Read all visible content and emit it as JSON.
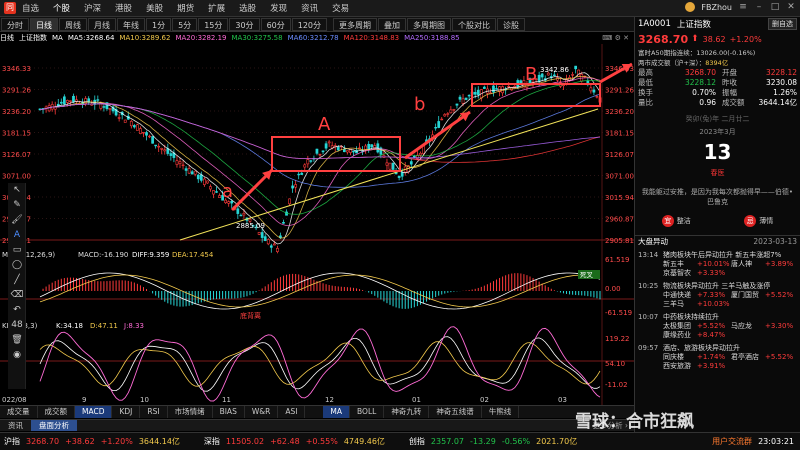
{
  "menu": {
    "items": [
      "自选",
      "个股",
      "沪深",
      "港股",
      "美股",
      "期货",
      "扩展",
      "选股",
      "发现",
      "资讯",
      "交易"
    ],
    "active": "个股",
    "user": "FBZhou"
  },
  "period_tabs": [
    "分时",
    "日线",
    "周线",
    "月线",
    "年线",
    "1分",
    "5分",
    "15分",
    "30分",
    "60分",
    "120分",
    "更多周期",
    "叠加",
    "多周期图",
    "个股对比",
    "诊股"
  ],
  "period_active": "日线",
  "ma_legend": {
    "label": "日线",
    "name": "上证指数",
    "ma": "MA",
    "items": [
      {
        "text": "MA5:3268.64",
        "color": "#ffffff"
      },
      {
        "text": "MA10:3289.62",
        "color": "#f2c94c"
      },
      {
        "text": "MA20:3282.19",
        "color": "#ff6bd6"
      },
      {
        "text": "MA30:3275.58",
        "color": "#21c24b"
      },
      {
        "text": "MA60:3212.78",
        "color": "#6a8cff"
      },
      {
        "text": "MA120:3148.83",
        "color": "#ff3b3b"
      },
      {
        "text": "MA250:3188.85",
        "color": "#b36bff"
      }
    ]
  },
  "price_axis": [
    "3346.33",
    "3291.26",
    "3236.20",
    "3181.15",
    "3126.07",
    "3071.00",
    "3015.94",
    "2960.87",
    "2905.81"
  ],
  "price_axis_right": [
    "3346.33",
    "3291.26",
    "3236.20",
    "3181.15",
    "3126.07",
    "3071.00",
    "3015.94",
    "2960.87",
    "2905.81"
  ],
  "annotations": {
    "low": "2885.09",
    "high": "3342.86",
    "a": "a",
    "A": "A",
    "b": "b",
    "B": "B"
  },
  "macd": {
    "legend": "MACD(12,26,9)",
    "macd": "MACD:-16.190",
    "diff": "DIFF:9.359",
    "dea": "DEA:17.454",
    "axis": [
      "61.519",
      "0.00",
      "-61.519"
    ],
    "death_label": "死叉",
    "golden_label": "金叉",
    "tag": "底背离"
  },
  "kdj": {
    "legend": "KDJ(9,3,3)",
    "k": "K:34.18",
    "d": "D:47.11",
    "j": "J:8.33",
    "axis": [
      "119.22",
      "54.10",
      "-11.02"
    ]
  },
  "date_axis": [
    "022/08",
    "9",
    "10",
    "11",
    "12",
    "01",
    "02",
    "03"
  ],
  "indicator_tabs": [
    "成交量",
    "成交额",
    "MACD",
    "KDJ",
    "RSI",
    "市场情绪",
    "BIAS",
    "W&R",
    "ASI",
    "MA",
    "BOLL",
    "神奇九转",
    "神奇五线谱",
    "牛熊线"
  ],
  "indicator_active": [
    "MACD",
    "MA"
  ],
  "bottom_tabs": [
    "资讯",
    "盘面分析"
  ],
  "bottom_active": "盘面分析",
  "bottom_more": "更多分析",
  "left_tools": [
    "cursor",
    "pen",
    "brush",
    "text",
    "rect",
    "ellipse",
    "line",
    "eraser",
    "undo",
    "count",
    "trash",
    "eye"
  ],
  "left_tool_count": "48",
  "status": {
    "items": [
      {
        "name": "沪指",
        "price": "3268.70",
        "chg": "+38.62",
        "pct": "+1.20%",
        "vol": "3644.14亿",
        "dir": "up"
      },
      {
        "name": "深指",
        "price": "11505.02",
        "chg": "+62.48",
        "pct": "+0.55%",
        "vol": "4749.46亿",
        "dir": "up"
      },
      {
        "name": "创指",
        "price": "2357.07",
        "chg": "-13.29",
        "pct": "-0.56%",
        "vol": "2021.70亿",
        "dir": "down"
      }
    ],
    "link": "用户交流群",
    "time": "23:03:21"
  },
  "right_panel": {
    "code": "1A0001",
    "name": "上证指数",
    "self_label": "删自选",
    "price": "3268.70",
    "chg": "38.62",
    "pct": "+1.20%",
    "note1": "富时A50期指连续：13026.00(-0.16%)",
    "note2_label": "两市成交额（沪+深）：",
    "note2_value": "8394亿",
    "quote": [
      {
        "k": "最高",
        "v": "3268.70",
        "vc": "red",
        "k2": "开盘",
        "v2": "3228.12",
        "v2c": "red"
      },
      {
        "k": "最低",
        "v": "3228.12",
        "vc": "green",
        "k2": "昨收",
        "v2": "3230.08",
        "v2c": "white"
      },
      {
        "k": "换手",
        "v": "0.70%",
        "vc": "white",
        "k2": "振幅",
        "v2": "1.26%",
        "v2c": "white"
      },
      {
        "k": "量比",
        "v": "0.96",
        "vc": "white",
        "k2": "成交额",
        "v2": "3644.14亿",
        "v2c": "white"
      }
    ],
    "calendar": {
      "lunar": "癸卯(兔)年 二月廿二",
      "month": "2023年3月",
      "day": "13",
      "festival": "春医",
      "poem": "我能躯过安推，是因为我每次都抛得早——伯德•巴鲁克",
      "yi": "宜",
      "yi_text": "整洁",
      "ji": "忌",
      "ji_text": "薄情"
    },
    "news_header": "大盘异动",
    "news_date": "2023-03-13",
    "news": [
      {
        "time": "13:14",
        "title": "猪肉板块午后异动拉升 新五丰涨超7%",
        "stocks": [
          {
            "s": "新五丰",
            "p": "+10.01%"
          },
          {
            "s": "唐人神",
            "p": "+3.89%"
          },
          {
            "s": "京基智农",
            "p": "+3.33%"
          }
        ]
      },
      {
        "time": "10:25",
        "title": "物流板块异动拉升 三羊马触及涨停",
        "stocks": [
          {
            "s": "中通快递",
            "p": "+7.33%"
          },
          {
            "s": "厦门国贸",
            "p": "+5.52%"
          },
          {
            "s": "三羊马",
            "p": "+10.03%"
          }
        ]
      },
      {
        "time": "10:07",
        "title": "中药板块持续拉升",
        "stocks": [
          {
            "s": "太极集团",
            "p": "+5.52%"
          },
          {
            "s": "马应龙",
            "p": "+3.30%"
          },
          {
            "s": "康缘药业",
            "p": "+8.47%"
          }
        ]
      },
      {
        "time": "09:57",
        "title": "酒店、旅游板块异动拉升",
        "stocks": [
          {
            "s": "同庆楼",
            "p": "+1.74%"
          },
          {
            "s": "君亭酒店",
            "p": "+5.52%"
          },
          {
            "s": "西安旅游",
            "p": "+3.91%"
          }
        ]
      }
    ],
    "watermark": "雪球：合市狂飙"
  }
}
